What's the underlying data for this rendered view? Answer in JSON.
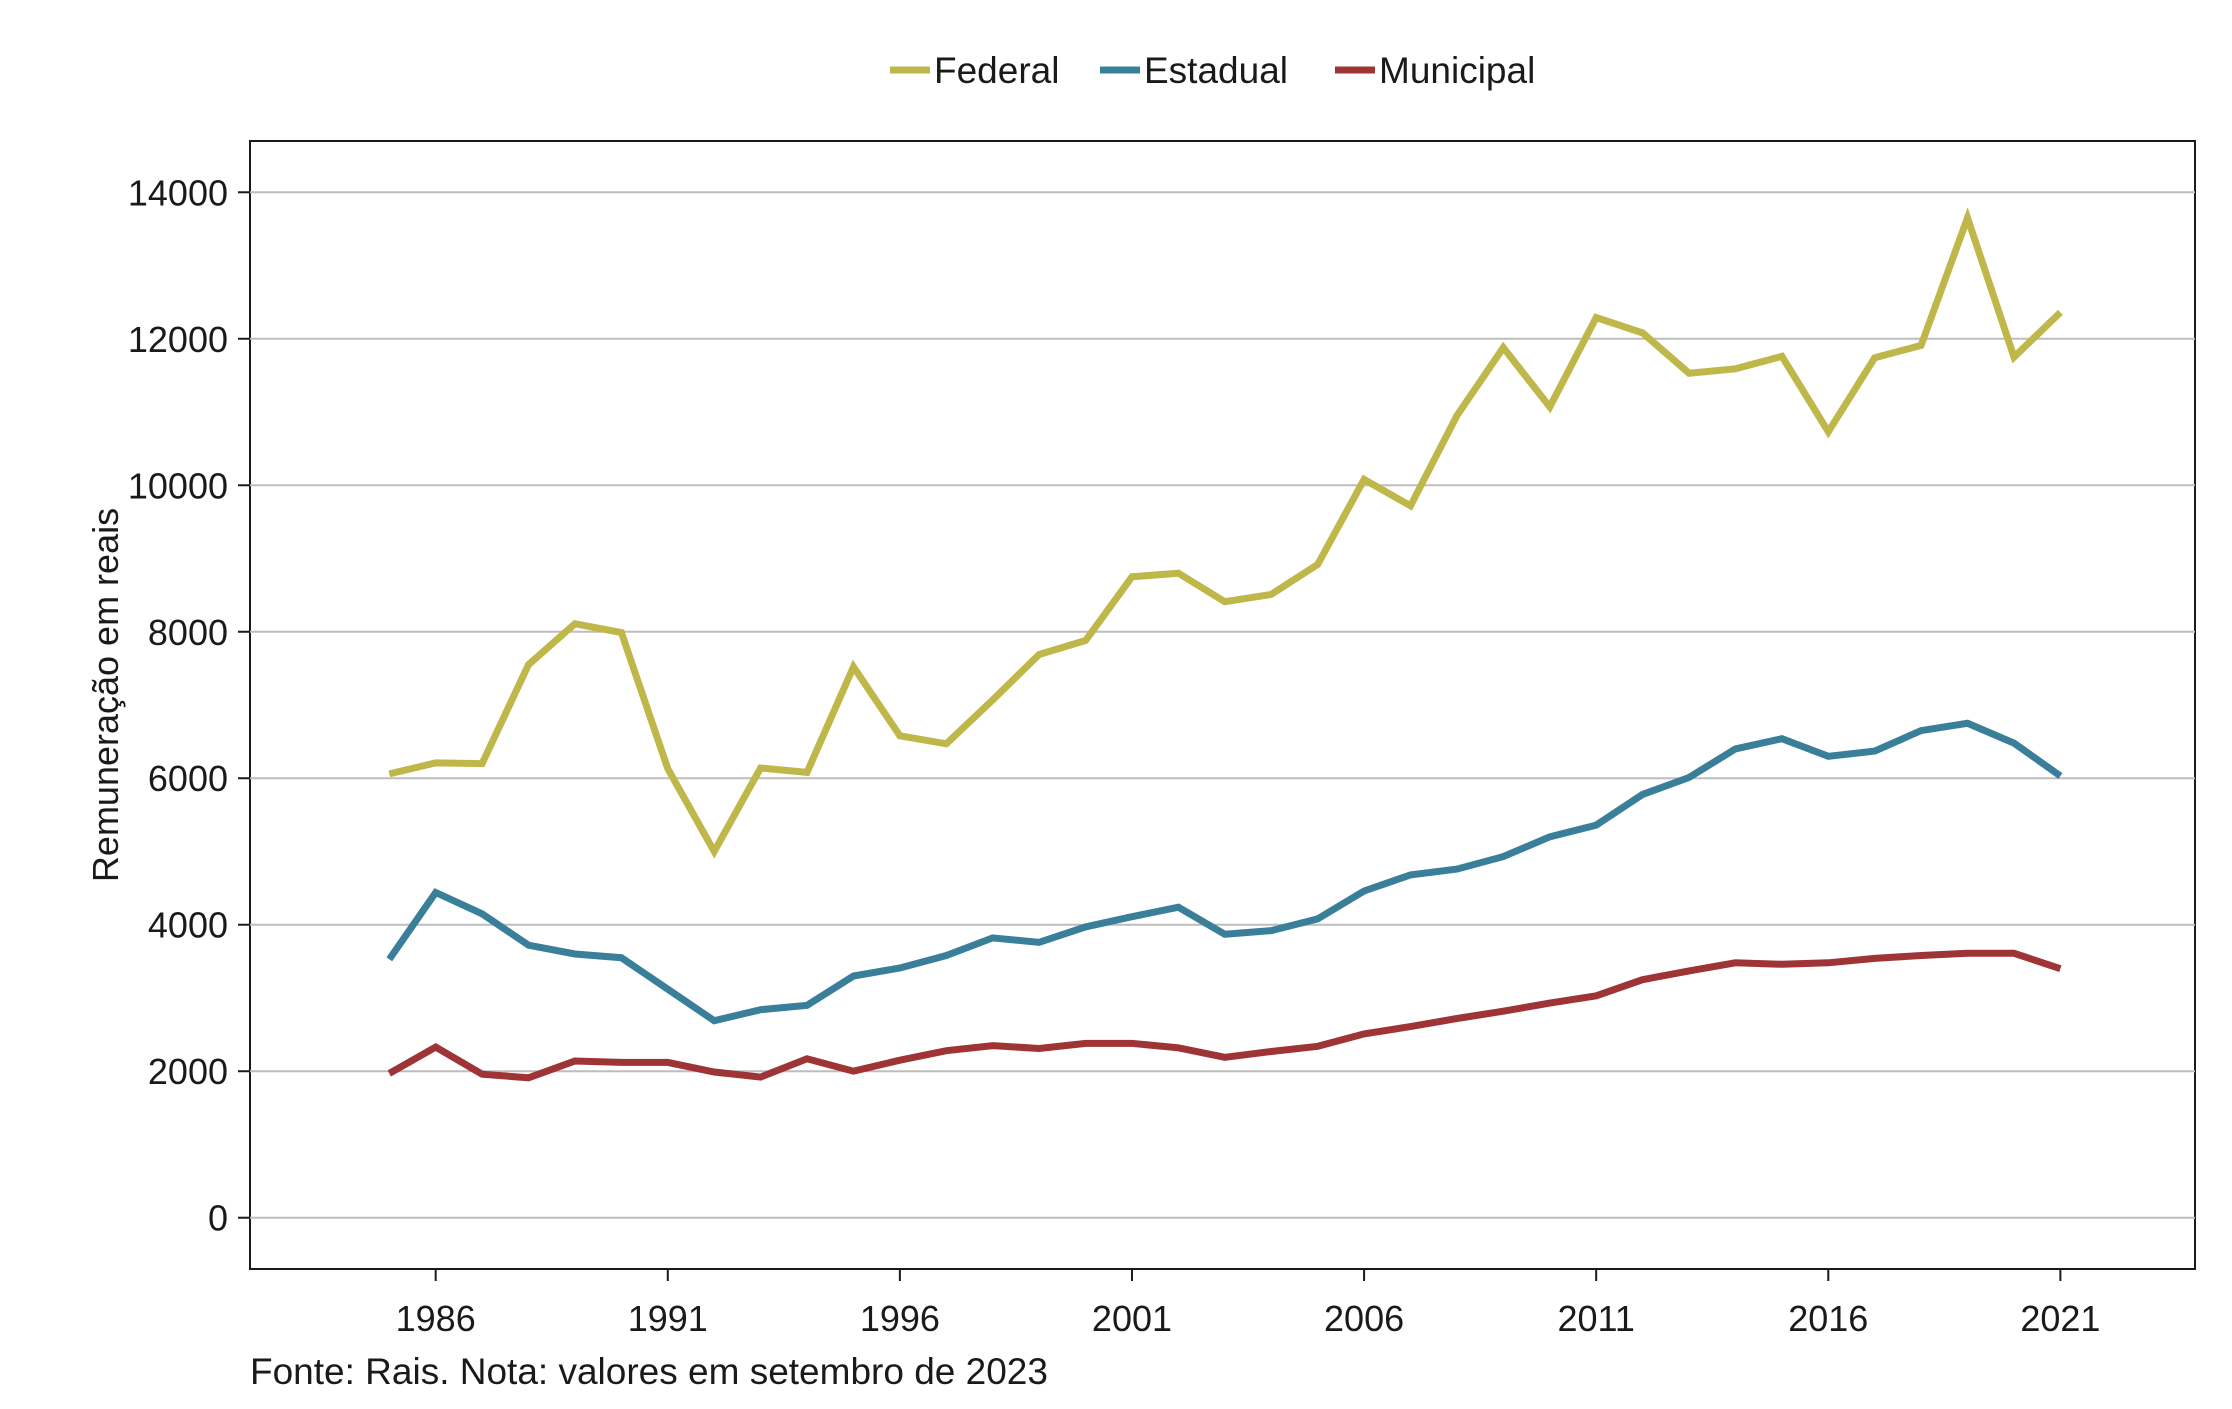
{
  "chart_data": {
    "type": "line",
    "title": "",
    "xlabel": "",
    "ylabel": "Remuneração em reais",
    "source_note": "Fonte: Rais. Nota: valores em setembro de 2023",
    "x": [
      1985,
      1986,
      1987,
      1988,
      1989,
      1990,
      1991,
      1992,
      1993,
      1994,
      1995,
      1996,
      1997,
      1998,
      1999,
      2000,
      2001,
      2002,
      2003,
      2004,
      2005,
      2006,
      2007,
      2008,
      2009,
      2010,
      2011,
      2012,
      2013,
      2014,
      2015,
      2016,
      2017,
      2018,
      2019,
      2020,
      2021
    ],
    "xticks": [
      1986,
      1991,
      1996,
      2001,
      2006,
      2011,
      2016,
      2021
    ],
    "xlim": [
      1982,
      2023.9
    ],
    "yticks": [
      0,
      2000,
      4000,
      6000,
      8000,
      10000,
      12000,
      14000
    ],
    "ylim": [
      -700,
      14700
    ],
    "grid": "horizontal",
    "legend_position": "top-center",
    "series": [
      {
        "name": "Federal",
        "color": "#bfb74a",
        "values": [
          6060,
          6210,
          6200,
          7550,
          8110,
          7990,
          6130,
          5000,
          6140,
          6080,
          7520,
          6580,
          6470,
          7070,
          7690,
          7880,
          8750,
          8800,
          8410,
          8510,
          8920,
          10080,
          9720,
          10950,
          11880,
          11070,
          12290,
          12080,
          11530,
          11590,
          11760,
          10730,
          11740,
          11910,
          13650,
          11750,
          12360
        ]
      },
      {
        "name": "Estadual",
        "color": "#3a7f9a",
        "values": [
          3530,
          4440,
          4150,
          3720,
          3600,
          3550,
          3120,
          2690,
          2840,
          2900,
          3300,
          3410,
          3580,
          3820,
          3760,
          3970,
          4110,
          4240,
          3870,
          3920,
          4080,
          4460,
          4680,
          4760,
          4930,
          5200,
          5360,
          5780,
          6010,
          6400,
          6540,
          6300,
          6370,
          6650,
          6750,
          6480,
          6030
        ]
      },
      {
        "name": "Municipal",
        "color": "#9e3436",
        "values": [
          1970,
          2330,
          1960,
          1910,
          2140,
          2120,
          2120,
          1990,
          1920,
          2170,
          2000,
          2150,
          2280,
          2350,
          2310,
          2380,
          2380,
          2320,
          2190,
          2270,
          2340,
          2510,
          2610,
          2720,
          2820,
          2930,
          3030,
          3250,
          3370,
          3480,
          3460,
          3480,
          3540,
          3580,
          3610,
          3610,
          3400
        ]
      }
    ]
  }
}
